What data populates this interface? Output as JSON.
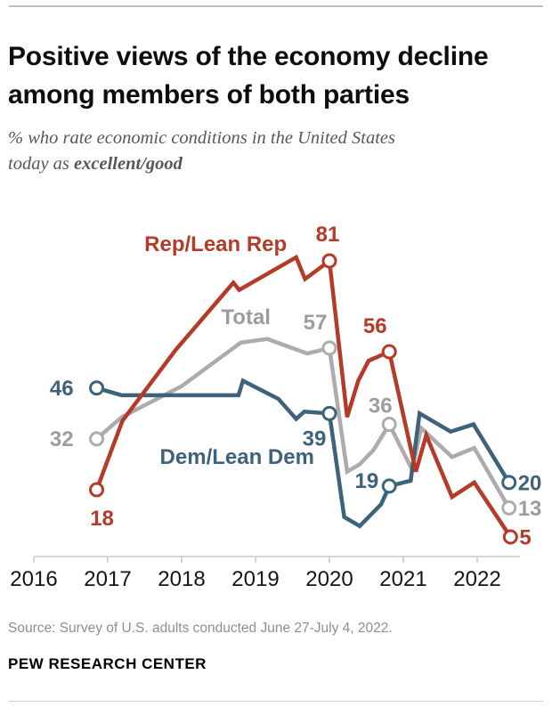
{
  "page": {
    "title_line1": "Positive views of the economy decline",
    "title_line2": "among members of both parties",
    "subtitle_line1": "% who rate economic conditions in the United States",
    "subtitle_line2_prefix": "today as ",
    "subtitle_line2_bold": "excellent/good",
    "source": "Source: Survey of U.S. adults conducted June 27-July 4, 2022.",
    "brand": "PEW RESEARCH CENTER"
  },
  "chart_data": {
    "type": "line",
    "title": "Positive views of the economy decline among members of both parties",
    "ylabel": "% rating economic conditions excellent/good",
    "xlabel": "",
    "grid": false,
    "legend": "inline-labels",
    "x_ticks": [
      2016,
      2017,
      2018,
      2019,
      2020,
      2021,
      2022
    ],
    "x_range": [
      2016,
      2022.58
    ],
    "y_range": [
      0,
      88
    ],
    "axis_color": "#c9c9c9",
    "tick_label_color": "#151515",
    "series": [
      {
        "name": "Total",
        "color": "#acacac",
        "label_color": "#9d9d9d",
        "label_pos": {
          "x": 2018.87,
          "y": 63.6
        },
        "points": [
          [
            2016.85,
            32
          ],
          [
            2017.19,
            38
          ],
          [
            2018,
            46.5
          ],
          [
            2018.8,
            58.5
          ],
          [
            2019.16,
            59.5
          ],
          [
            2019.7,
            55.5
          ],
          [
            2020,
            57
          ],
          [
            2020.24,
            23
          ],
          [
            2020.41,
            25
          ],
          [
            2020.6,
            29
          ],
          [
            2020.81,
            36
          ],
          [
            2021.12,
            23.5
          ],
          [
            2021.24,
            35
          ],
          [
            2021.66,
            27
          ],
          [
            2021.96,
            29.5
          ],
          [
            2022.43,
            13
          ]
        ],
        "highlights": [
          {
            "x": 2016.85,
            "label": "32",
            "placement": "left"
          },
          {
            "x": 2020,
            "label": "57",
            "placement": "above-left"
          },
          {
            "x": 2020.81,
            "label": "36",
            "placement": "above-near"
          },
          {
            "x": 2022.43,
            "label": "13",
            "placement": "right"
          }
        ]
      },
      {
        "name": "Dem/Lean Dem",
        "color": "#3d627c",
        "label_color": "#3d627c",
        "label_pos": {
          "x": 2018.75,
          "y": 25.1
        },
        "points": [
          [
            2016.85,
            46
          ],
          [
            2017.19,
            44
          ],
          [
            2018.77,
            44
          ],
          [
            2018.83,
            48
          ],
          [
            2019.31,
            43
          ],
          [
            2019.55,
            37.5
          ],
          [
            2019.66,
            39.5
          ],
          [
            2020,
            39
          ],
          [
            2020.2,
            10.5
          ],
          [
            2020.41,
            8
          ],
          [
            2020.7,
            14
          ],
          [
            2020.81,
            19
          ],
          [
            2021.1,
            20.5
          ],
          [
            2021.22,
            39
          ],
          [
            2021.64,
            34
          ],
          [
            2021.95,
            36
          ],
          [
            2022.43,
            20
          ]
        ],
        "highlights": [
          {
            "x": 2016.85,
            "label": "46",
            "placement": "left"
          },
          {
            "x": 2020,
            "label": "39",
            "placement": "below-left"
          },
          {
            "x": 2020.81,
            "label": "19",
            "placement": "left-close"
          },
          {
            "x": 2022.43,
            "label": "20",
            "placement": "right"
          }
        ]
      },
      {
        "name": "Rep/Lean Rep",
        "color": "#b43b28",
        "label_color": "#b43b28",
        "label_pos": {
          "x": 2018.46,
          "y": 83.7
        },
        "points": [
          [
            2016.85,
            18
          ],
          [
            2017.2,
            37
          ],
          [
            2017.92,
            56.5
          ],
          [
            2018.7,
            75
          ],
          [
            2018.78,
            73
          ],
          [
            2019.55,
            82
          ],
          [
            2019.67,
            76
          ],
          [
            2020,
            81
          ],
          [
            2020.24,
            38
          ],
          [
            2020.39,
            48
          ],
          [
            2020.53,
            53.5
          ],
          [
            2020.81,
            56
          ],
          [
            2021.17,
            23
          ],
          [
            2021.31,
            33
          ],
          [
            2021.66,
            16
          ],
          [
            2021.96,
            20
          ],
          [
            2022.45,
            5
          ]
        ],
        "highlights": [
          {
            "x": 2016.85,
            "label": "18",
            "placement": "below"
          },
          {
            "x": 2020,
            "label": "81",
            "placement": "above"
          },
          {
            "x": 2020.81,
            "label": "56",
            "placement": "above-left"
          },
          {
            "x": 2022.45,
            "label": "5",
            "placement": "right"
          }
        ]
      }
    ]
  }
}
